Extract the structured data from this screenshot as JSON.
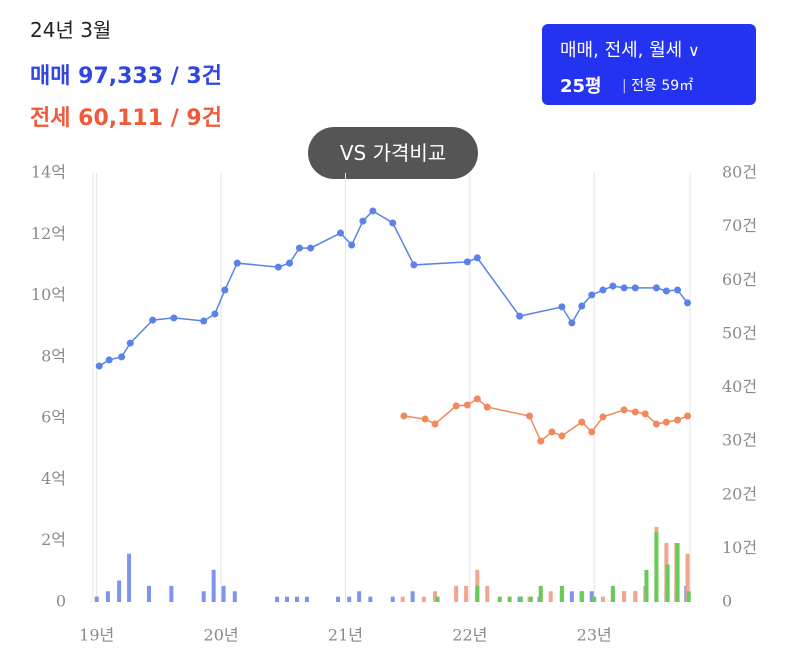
{
  "header": {
    "date": "24년 3월",
    "sale": "매매 97,333 / 3건",
    "jeonse": "전세 60,111 / 9건",
    "filter": "매매, 전세, 월세",
    "size": "25평",
    "area": "전용 59㎡",
    "compare": "VS 가격비교"
  },
  "chart_data": {
    "type": "line",
    "xlim": [
      18.97,
      23.77
    ],
    "xticks": [
      {
        "value": 19,
        "label": "19년"
      },
      {
        "value": 20,
        "label": "20년"
      },
      {
        "value": 21,
        "label": "21년"
      },
      {
        "value": 22,
        "label": "22년"
      },
      {
        "value": 23,
        "label": "23년"
      }
    ],
    "ylim": [
      0,
      14
    ],
    "yticks": [
      0,
      {
        "value": 2,
        "label": "2억"
      },
      {
        "value": 4,
        "label": "4억"
      },
      {
        "value": 6,
        "label": "6억"
      },
      {
        "value": 8,
        "label": "8억"
      },
      {
        "value": 10,
        "label": "10억"
      },
      {
        "value": 12,
        "label": "12억"
      },
      {
        "value": 14,
        "label": "14억"
      }
    ],
    "y2lim": [
      0,
      80
    ],
    "y2ticks": [
      0,
      {
        "value": 10,
        "label": "10건"
      },
      {
        "value": 20,
        "label": "20건"
      },
      {
        "value": 30,
        "label": "30건"
      },
      {
        "value": 40,
        "label": "40건"
      },
      {
        "value": 50,
        "label": "50건"
      },
      {
        "value": 60,
        "label": "60건"
      },
      {
        "value": 70,
        "label": "70건"
      },
      {
        "value": 80,
        "label": "80건"
      }
    ],
    "grid": true,
    "series": [
      {
        "type": "bar",
        "axis": "y2",
        "color": "#7f94ec",
        "x": [
          19.0,
          19.09,
          19.18,
          19.26,
          19.42,
          19.6,
          19.86,
          19.94,
          20.02,
          20.11,
          20.45,
          20.53,
          20.61,
          20.69,
          20.94,
          21.03,
          21.11,
          21.2,
          21.38,
          21.54,
          21.97,
          22.06,
          22.4,
          22.56,
          22.74,
          22.82,
          22.9,
          22.98,
          23.15,
          23.24,
          23.33,
          23.5,
          23.58,
          23.66,
          23.74
        ],
        "values": [
          1,
          2,
          4,
          9,
          3,
          3,
          2,
          6,
          3,
          2,
          1,
          1,
          1,
          1,
          1,
          1,
          2,
          1,
          1,
          2,
          1,
          3,
          1,
          1,
          2,
          2,
          2,
          2,
          2,
          2,
          2,
          2,
          3,
          3,
          3
        ]
      },
      {
        "type": "bar",
        "axis": "y2",
        "color": "#f4a58e",
        "x": [
          21.46,
          21.63,
          21.72,
          21.89,
          21.97,
          22.06,
          22.14,
          22.48,
          22.57,
          22.65,
          22.74,
          22.9,
          23.07,
          23.24,
          23.33,
          23.41,
          23.5,
          23.58,
          23.66,
          23.75
        ],
        "values": [
          1,
          1,
          2,
          3,
          3,
          6,
          3,
          1,
          2,
          2,
          2,
          2,
          1,
          2,
          2,
          3,
          14,
          11,
          11,
          9
        ]
      },
      {
        "type": "bar",
        "axis": "y2",
        "color": "#66cc55",
        "x": [
          21.74,
          22.06,
          22.24,
          22.32,
          22.41,
          22.49,
          22.57,
          22.74,
          22.9,
          23.0,
          23.15,
          23.42,
          23.5,
          23.59,
          23.67,
          23.76
        ],
        "values": [
          1,
          3,
          1,
          1,
          1,
          1,
          3,
          3,
          2,
          1,
          3,
          6,
          13,
          7,
          11,
          2
        ]
      },
      {
        "type": "line",
        "color": "#5b82e8",
        "x": [
          19.02,
          19.1,
          19.2,
          19.27,
          19.45,
          19.62,
          19.86,
          19.95,
          20.03,
          20.13,
          20.46,
          20.55,
          20.63,
          20.72,
          20.96,
          21.05,
          21.14,
          21.22,
          21.38,
          21.55,
          21.98,
          22.06,
          22.4,
          22.74,
          22.82,
          22.9,
          22.98,
          23.07,
          23.15,
          23.24,
          23.33,
          23.5,
          23.58,
          23.67,
          23.75
        ],
        "values": [
          7.7,
          7.9,
          8.0,
          8.45,
          9.2,
          9.27,
          9.17,
          9.4,
          10.18,
          11.06,
          10.93,
          11.06,
          11.55,
          11.55,
          12.04,
          11.65,
          12.43,
          12.76,
          12.37,
          11.0,
          11.1,
          11.23,
          9.33,
          9.63,
          9.11,
          9.66,
          10.02,
          10.18,
          10.31,
          10.25,
          10.25,
          10.25,
          10.15,
          10.18,
          9.76
        ]
      },
      {
        "type": "line",
        "color": "#f08a5d",
        "x": [
          21.47,
          21.64,
          21.72,
          21.89,
          21.98,
          22.06,
          22.14,
          22.48,
          22.57,
          22.66,
          22.74,
          22.9,
          22.98,
          23.07,
          23.24,
          23.33,
          23.41,
          23.5,
          23.58,
          23.67,
          23.75
        ],
        "values": [
          6.07,
          5.97,
          5.81,
          6.4,
          6.43,
          6.63,
          6.36,
          6.07,
          5.25,
          5.55,
          5.42,
          5.87,
          5.55,
          6.04,
          6.27,
          6.2,
          6.14,
          5.81,
          5.87,
          5.94,
          6.07
        ]
      }
    ]
  }
}
